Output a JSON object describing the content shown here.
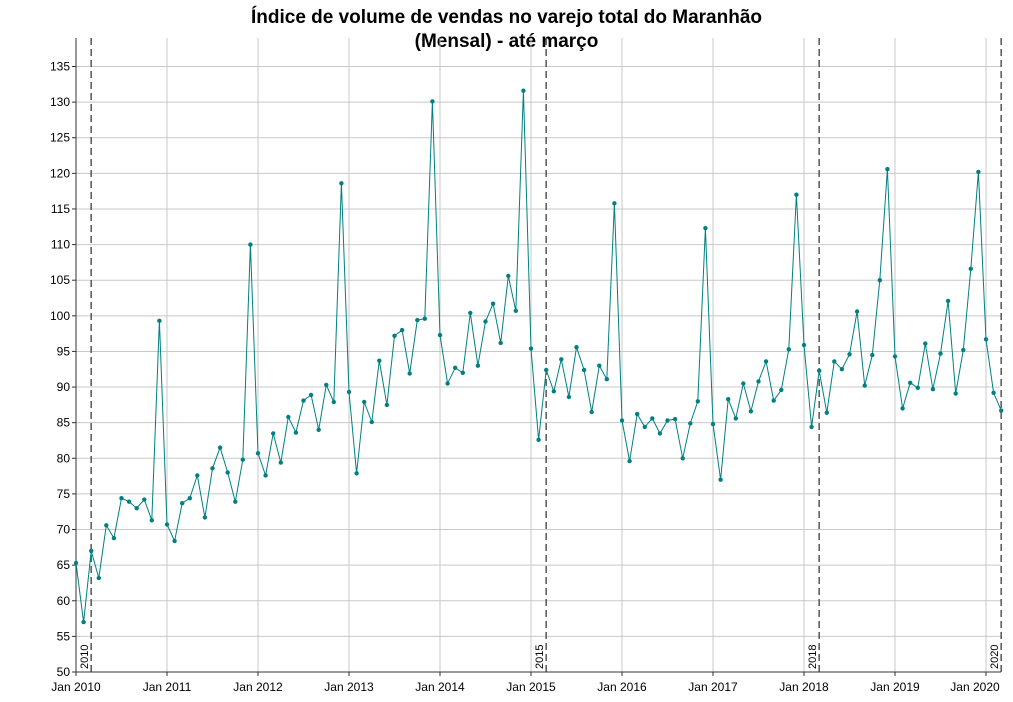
{
  "chart_data": {
    "type": "line",
    "title": "Índice de volume de vendas no varejo total do Maranhão",
    "subtitle": "(Mensal) - até março",
    "xlabel": "",
    "ylabel": "",
    "ylim": [
      50,
      139
    ],
    "y_ticks": [
      50,
      55,
      60,
      65,
      70,
      75,
      80,
      85,
      90,
      95,
      100,
      105,
      110,
      115,
      120,
      125,
      130,
      135
    ],
    "x_ticks": [
      "Jan 2010",
      "Jan 2011",
      "Jan 2012",
      "Jan 2013",
      "Jan 2014",
      "Jan 2015",
      "Jan 2016",
      "Jan 2017",
      "Jan 2018",
      "Jan 2019",
      "Jan 2020"
    ],
    "grid": true,
    "line_color": "#008080",
    "marker_color": "#008080",
    "reference_lines": [
      {
        "date": "2010-03",
        "label": "2010"
      },
      {
        "date": "2015-03",
        "label": "2015"
      },
      {
        "date": "2018-03",
        "label": "2018"
      },
      {
        "date": "2020-03",
        "label": "2020"
      }
    ],
    "start": "2010-01",
    "series": [
      {
        "values": [
          65.3,
          57.0,
          67.0,
          63.2,
          70.6,
          68.8,
          74.4,
          73.9,
          73.0,
          74.2,
          71.3,
          99.3,
          70.7,
          68.4,
          73.7,
          74.4,
          77.6,
          71.7,
          78.6,
          81.5,
          78.0,
          73.9,
          79.8,
          110.0,
          80.7,
          77.6,
          83.5,
          79.4,
          85.8,
          83.6,
          88.1,
          88.9,
          84.0,
          90.3,
          87.9,
          118.6,
          89.3,
          77.9,
          87.9,
          85.1,
          93.7,
          87.5,
          97.2,
          98.0,
          91.9,
          99.4,
          99.6,
          130.1,
          97.3,
          90.5,
          92.7,
          92.0,
          100.4,
          93.0,
          99.2,
          101.7,
          96.2,
          105.6,
          100.7,
          131.6,
          95.4,
          82.6,
          92.4,
          89.4,
          93.9,
          88.6,
          95.6,
          92.4,
          86.5,
          93.0,
          91.1,
          115.8,
          85.3,
          79.6,
          86.2,
          84.4,
          85.6,
          83.5,
          85.3,
          85.5,
          80.0,
          84.9,
          88.0,
          112.3,
          84.8,
          77.0,
          88.3,
          85.6,
          90.5,
          86.6,
          90.8,
          93.6,
          88.1,
          89.6,
          95.3,
          117.0,
          95.9,
          84.4,
          92.3,
          86.4,
          93.6,
          92.5,
          94.6,
          100.6,
          90.2,
          94.5,
          105.0,
          120.6,
          94.3,
          87.0,
          90.6,
          89.9,
          96.1,
          89.7,
          94.7,
          102.1,
          89.1,
          95.2,
          106.6,
          120.2,
          96.7,
          89.2,
          86.7
        ]
      }
    ]
  }
}
